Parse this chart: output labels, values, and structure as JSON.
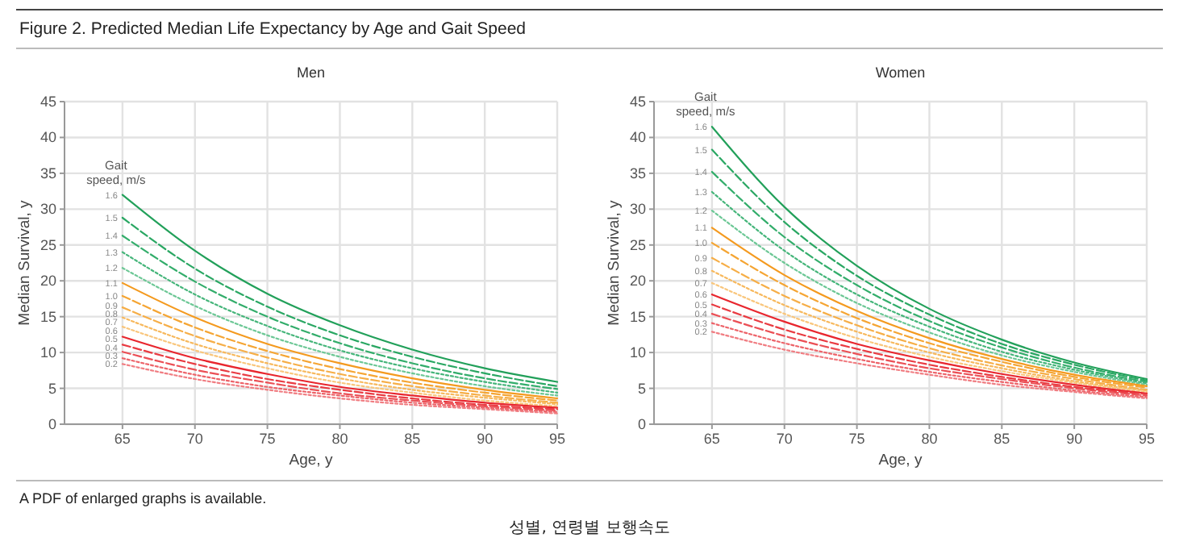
{
  "chart_data": [
    {
      "type": "line",
      "title": "Men",
      "xlabel": "Age, y",
      "ylabel": "Median Survival, y",
      "legend_title": "Gait speed, m/s",
      "annotations": [
        "Figure 2. Predicted Median Life Expectancy by Age and Gait Speed",
        "A PDF of enlarged graphs is available.",
        "성별, 연령별 보행속도"
      ],
      "x": [
        65,
        70,
        75,
        80,
        85,
        90,
        95
      ],
      "xlim": [
        61,
        95
      ],
      "xticks": [
        65,
        70,
        75,
        80,
        85,
        90,
        95
      ],
      "ylim": [
        0,
        45
      ],
      "yticks": [
        0,
        5,
        10,
        15,
        20,
        25,
        30,
        35,
        40,
        45
      ],
      "grid": true,
      "series": [
        {
          "name": "1.6",
          "color": "#22a05a",
          "line_style": "solid",
          "values": [
            32,
            24.2,
            18.2,
            13.8,
            10.4,
            7.8,
            5.9
          ]
        },
        {
          "name": "1.5",
          "color": "#2aa763",
          "line_style": "dashed",
          "values": [
            28.8,
            21.7,
            16.4,
            12.4,
            9.4,
            7.1,
            5.3
          ]
        },
        {
          "name": "1.4",
          "color": "#33ad6b",
          "line_style": "dashed",
          "values": [
            26.3,
            19.9,
            15.0,
            11.3,
            8.5,
            6.4,
            4.9
          ]
        },
        {
          "name": "1.3",
          "color": "#45b57a",
          "line_style": "dotted",
          "values": [
            24,
            18.1,
            13.7,
            10.3,
            7.8,
            5.9,
            4.4
          ]
        },
        {
          "name": "1.2",
          "color": "#6cc795",
          "line_style": "dotted",
          "values": [
            21.8,
            16.5,
            12.4,
            9.4,
            7.1,
            5.3,
            4.0
          ]
        },
        {
          "name": "1.1",
          "color": "#f49a1f",
          "line_style": "solid",
          "values": [
            19.7,
            14.9,
            11.2,
            8.5,
            6.4,
            4.8,
            3.6
          ]
        },
        {
          "name": "1.0",
          "color": "#f5a533",
          "line_style": "dashed",
          "values": [
            17.9,
            13.5,
            10.2,
            7.7,
            5.8,
            4.4,
            3.3
          ]
        },
        {
          "name": "0.9",
          "color": "#f6ae47",
          "line_style": "dashed",
          "values": [
            16.3,
            12.3,
            9.3,
            7.0,
            5.3,
            4.0,
            3.0
          ]
        },
        {
          "name": "0.8",
          "color": "#f7b85c",
          "line_style": "dotted",
          "values": [
            14.9,
            11.2,
            8.5,
            6.4,
            4.8,
            3.7,
            2.8
          ]
        },
        {
          "name": "0.7",
          "color": "#f9c67c",
          "line_style": "dotted",
          "values": [
            13.6,
            10.3,
            7.8,
            5.8,
            4.4,
            3.3,
            2.5
          ]
        },
        {
          "name": "0.6",
          "color": "#e8262e",
          "line_style": "solid",
          "values": [
            12.2,
            9.2,
            7.0,
            5.2,
            4.0,
            3.0,
            2.3
          ]
        },
        {
          "name": "0.5",
          "color": "#e93b42",
          "line_style": "dashed",
          "values": [
            11.1,
            8.4,
            6.3,
            4.8,
            3.6,
            2.7,
            2.1
          ]
        },
        {
          "name": "0.4",
          "color": "#eb4f55",
          "line_style": "dashed",
          "values": [
            10.1,
            7.6,
            5.8,
            4.3,
            3.3,
            2.5,
            1.9
          ]
        },
        {
          "name": "0.3",
          "color": "#ed6369",
          "line_style": "dotted",
          "values": [
            9.2,
            6.9,
            5.2,
            4.0,
            3.0,
            2.3,
            1.7
          ]
        },
        {
          "name": "0.2",
          "color": "#f07d82",
          "line_style": "dotted",
          "values": [
            8.4,
            6.3,
            4.8,
            3.6,
            2.7,
            2.1,
            1.5
          ]
        }
      ]
    },
    {
      "type": "line",
      "title": "Women",
      "xlabel": "Age, y",
      "ylabel": "Median Survival, y",
      "legend_title": "Gait speed, m/s",
      "x": [
        65,
        70,
        75,
        80,
        85,
        90,
        95
      ],
      "xlim": [
        61,
        95
      ],
      "xticks": [
        65,
        70,
        75,
        80,
        85,
        90,
        95
      ],
      "ylim": [
        0,
        45
      ],
      "yticks": [
        0,
        5,
        10,
        15,
        20,
        25,
        30,
        35,
        40,
        45
      ],
      "grid": true,
      "series": [
        {
          "name": "1.6",
          "color": "#22a05a",
          "line_style": "solid",
          "values": [
            41.5,
            30.3,
            22.1,
            16.1,
            11.8,
            8.6,
            6.3
          ]
        },
        {
          "name": "1.5",
          "color": "#2aa763",
          "line_style": "dashed",
          "values": [
            38.3,
            28.2,
            20.7,
            15.3,
            11.2,
            8.3,
            6.1
          ]
        },
        {
          "name": "1.4",
          "color": "#33ad6b",
          "line_style": "dashed",
          "values": [
            35.2,
            26.1,
            19.4,
            14.4,
            10.7,
            7.9,
            5.9
          ]
        },
        {
          "name": "1.3",
          "color": "#45b57a",
          "line_style": "dotted",
          "values": [
            32.4,
            24.2,
            18.1,
            13.6,
            10.1,
            7.6,
            5.7
          ]
        },
        {
          "name": "1.2",
          "color": "#6cc795",
          "line_style": "dotted",
          "values": [
            29.8,
            22.5,
            16.9,
            12.8,
            9.6,
            7.3,
            5.5
          ]
        },
        {
          "name": "1.1",
          "color": "#f49a1f",
          "line_style": "solid",
          "values": [
            27.4,
            20.8,
            15.8,
            12.0,
            9.1,
            6.9,
            5.3
          ]
        },
        {
          "name": "1.0",
          "color": "#f5a533",
          "line_style": "dashed",
          "values": [
            25.3,
            19.4,
            14.8,
            11.3,
            8.7,
            6.6,
            5.1
          ]
        },
        {
          "name": "0.9",
          "color": "#f6ae47",
          "line_style": "dashed",
          "values": [
            23.2,
            17.9,
            13.8,
            10.6,
            8.2,
            6.3,
            4.8
          ]
        },
        {
          "name": "0.8",
          "color": "#f7b85c",
          "line_style": "dotted",
          "values": [
            21.4,
            16.6,
            12.9,
            10.0,
            7.8,
            6.0,
            4.7
          ]
        },
        {
          "name": "0.7",
          "color": "#f9c67c",
          "line_style": "dotted",
          "values": [
            19.7,
            15.4,
            12.0,
            9.4,
            7.4,
            5.8,
            4.5
          ]
        },
        {
          "name": "0.6",
          "color": "#e8262e",
          "line_style": "solid",
          "values": [
            18.1,
            14.3,
            11.2,
            8.9,
            7.0,
            5.5,
            4.3
          ]
        },
        {
          "name": "0.5",
          "color": "#e93b42",
          "line_style": "dashed",
          "values": [
            16.7,
            13.2,
            10.5,
            8.3,
            6.6,
            5.2,
            4.2
          ]
        },
        {
          "name": "0.4",
          "color": "#eb4f55",
          "line_style": "dashed",
          "values": [
            15.4,
            12.3,
            9.8,
            7.8,
            6.3,
            5.0,
            4.0
          ]
        },
        {
          "name": "0.3",
          "color": "#ed6369",
          "line_style": "dotted",
          "values": [
            14.1,
            11.3,
            9.1,
            7.3,
            5.9,
            4.7,
            3.8
          ]
        },
        {
          "name": "0.2",
          "color": "#f07d82",
          "line_style": "dotted",
          "values": [
            12.9,
            10.4,
            8.5,
            6.9,
            5.5,
            4.5,
            3.6
          ]
        }
      ]
    }
  ]
}
